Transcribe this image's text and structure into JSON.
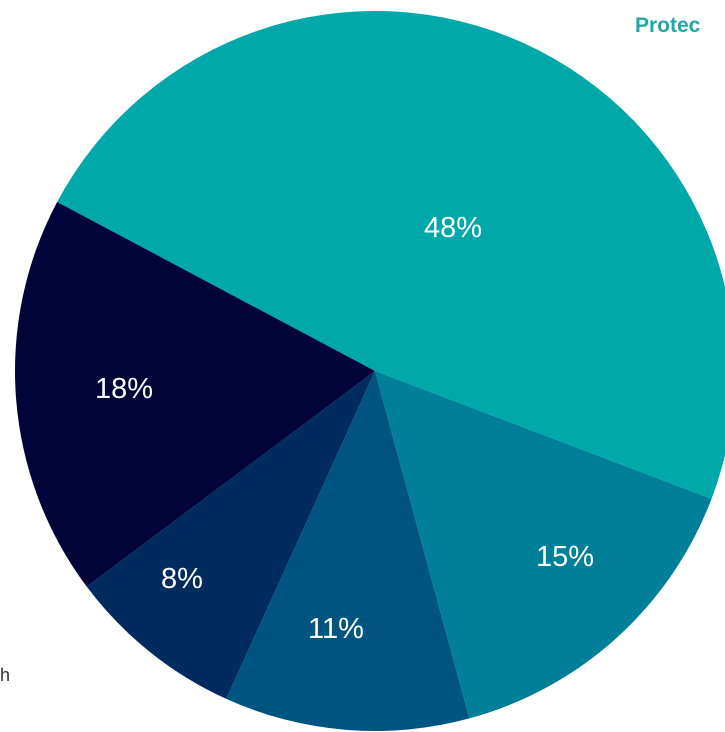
{
  "chart_data": {
    "type": "pie",
    "slices": [
      {
        "label": "48%",
        "value": 48,
        "color": "#00a8aa"
      },
      {
        "label": "15%",
        "value": 15,
        "color": "#007f98"
      },
      {
        "label": "11%",
        "value": 11,
        "color": "#005580"
      },
      {
        "label": "8%",
        "value": 8,
        "color": "#002b5e"
      },
      {
        "label": "18%",
        "value": 18,
        "color": "#020338"
      }
    ]
  },
  "partial_text": {
    "top_right": "Protec",
    "bottom_left": "h"
  }
}
